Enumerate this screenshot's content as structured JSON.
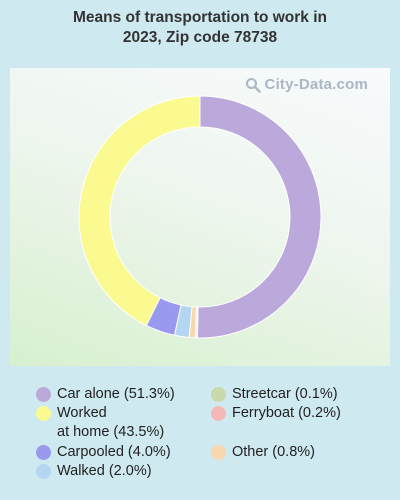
{
  "title": {
    "line1": "Means of transportation to work in",
    "line2": "2023, Zip code 78738"
  },
  "watermark": {
    "text": "City-Data.com",
    "icon": "search-magnifier-icon"
  },
  "chart_data": {
    "type": "pie",
    "style": "donut",
    "title": "Means of transportation to work in 2023, Zip code 78738",
    "series": [
      {
        "name": "Car alone",
        "value": 51.3,
        "color": "#bba9dc"
      },
      {
        "name": "Streetcar",
        "value": 0.1,
        "color": "#c9d9ae"
      },
      {
        "name": "Ferryboat",
        "value": 0.2,
        "color": "#f5b8b8"
      },
      {
        "name": "Other",
        "value": 0.8,
        "color": "#f9d7ae"
      },
      {
        "name": "Walked",
        "value": 2.0,
        "color": "#b5d6f2"
      },
      {
        "name": "Carpooled",
        "value": 4.0,
        "color": "#9999ee"
      },
      {
        "name": "Worked at home",
        "value": 43.5,
        "color": "#fafa90"
      }
    ],
    "legend_placement": "bottom"
  },
  "legend": {
    "items": [
      {
        "key": "car-alone",
        "label": "Car alone (51.3%)",
        "color": "#bba9dc"
      },
      {
        "key": "worked-at-home",
        "label": "Worked\nat home (43.5%)",
        "color": "#fafa90"
      },
      {
        "key": "carpooled",
        "label": "Carpooled (4.0%)",
        "color": "#9999ee"
      },
      {
        "key": "walked",
        "label": "Walked (2.0%)",
        "color": "#b5d6f2"
      },
      {
        "key": "streetcar",
        "label": "Streetcar (0.1%)",
        "color": "#c9d9ae"
      },
      {
        "key": "ferryboat",
        "label": "Ferryboat (0.2%)",
        "color": "#f5b8b8"
      },
      {
        "key": "other",
        "label": "Other (0.8%)",
        "color": "#f9d7ae"
      }
    ]
  }
}
